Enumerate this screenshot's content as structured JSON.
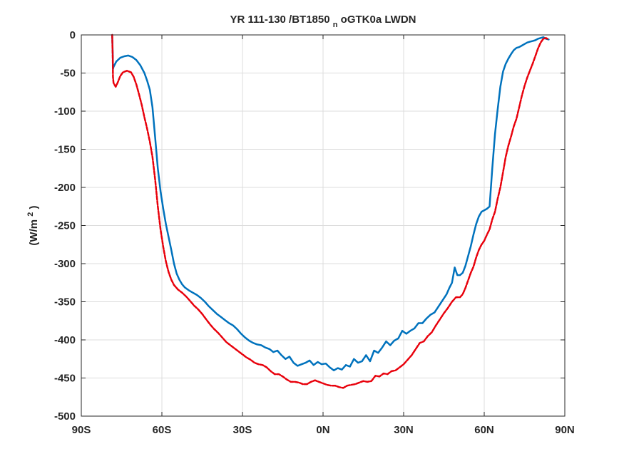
{
  "chart_data": {
    "type": "line",
    "title": {
      "main": "YR 111-130 /BT1850",
      "subscript": "n",
      "tail": "oGTK0a LWDN"
    },
    "xlabel": "",
    "ylabel": {
      "prefix": "(W/m",
      "superscript": "2",
      "suffix": ")"
    },
    "xlim": [
      -90,
      90
    ],
    "ylim": [
      -500,
      0
    ],
    "grid": true,
    "x_ticks": [
      {
        "value": -90,
        "label": "90S"
      },
      {
        "value": -60,
        "label": "60S"
      },
      {
        "value": -30,
        "label": "30S"
      },
      {
        "value": 0,
        "label": "0N"
      },
      {
        "value": 30,
        "label": "30N"
      },
      {
        "value": 60,
        "label": "60N"
      },
      {
        "value": 90,
        "label": "90N"
      }
    ],
    "y_ticks": [
      {
        "value": 0,
        "label": "0"
      },
      {
        "value": -50,
        "label": "-50"
      },
      {
        "value": -100,
        "label": "-100"
      },
      {
        "value": -150,
        "label": "-150"
      },
      {
        "value": -200,
        "label": "-200"
      },
      {
        "value": -250,
        "label": "-250"
      },
      {
        "value": -300,
        "label": "-300"
      },
      {
        "value": -350,
        "label": "-350"
      },
      {
        "value": -400,
        "label": "-400"
      },
      {
        "value": -450,
        "label": "-450"
      },
      {
        "value": -500,
        "label": "-500"
      }
    ],
    "series": [
      {
        "color": "#0072BD",
        "style": "solid",
        "points": [
          [
            -78.5,
            0
          ],
          [
            -78.3,
            -25
          ],
          [
            -78.2,
            -45
          ],
          [
            -78.0,
            -42
          ],
          [
            -77.0,
            -35
          ],
          [
            -75.5,
            -30
          ],
          [
            -74,
            -28
          ],
          [
            -72.5,
            -27
          ],
          [
            -71,
            -29
          ],
          [
            -69.5,
            -33
          ],
          [
            -68,
            -40
          ],
          [
            -66.5,
            -50
          ],
          [
            -65.5,
            -60
          ],
          [
            -64.5,
            -72
          ],
          [
            -63.5,
            -95
          ],
          [
            -62.5,
            -135
          ],
          [
            -61.5,
            -175
          ],
          [
            -60.5,
            -205
          ],
          [
            -59.5,
            -228
          ],
          [
            -58.5,
            -248
          ],
          [
            -57.5,
            -265
          ],
          [
            -56.5,
            -282
          ],
          [
            -55.5,
            -300
          ],
          [
            -54.5,
            -313
          ],
          [
            -53.5,
            -321
          ],
          [
            -52.5,
            -327
          ],
          [
            -51.5,
            -331
          ],
          [
            -50,
            -335
          ],
          [
            -48.5,
            -338
          ],
          [
            -47,
            -341
          ],
          [
            -45.5,
            -345
          ],
          [
            -44,
            -350
          ],
          [
            -42.5,
            -356
          ],
          [
            -41,
            -361
          ],
          [
            -39.5,
            -366
          ],
          [
            -38,
            -370
          ],
          [
            -36.5,
            -374
          ],
          [
            -35,
            -378
          ],
          [
            -33.5,
            -381
          ],
          [
            -32,
            -386
          ],
          [
            -30.5,
            -392
          ],
          [
            -29,
            -397
          ],
          [
            -27.5,
            -401
          ],
          [
            -26,
            -404
          ],
          [
            -24.5,
            -406
          ],
          [
            -23,
            -407
          ],
          [
            -21.5,
            -410
          ],
          [
            -20,
            -412
          ],
          [
            -18.5,
            -416
          ],
          [
            -17,
            -414
          ],
          [
            -15.5,
            -420
          ],
          [
            -14,
            -425
          ],
          [
            -12.5,
            -422
          ],
          [
            -11,
            -430
          ],
          [
            -9.5,
            -434
          ],
          [
            -8,
            -432
          ],
          [
            -6.5,
            -430
          ],
          [
            -5,
            -427
          ],
          [
            -3.5,
            -433
          ],
          [
            -2,
            -429
          ],
          [
            -0.5,
            -432
          ],
          [
            1,
            -431
          ],
          [
            2.5,
            -436
          ],
          [
            4,
            -440
          ],
          [
            5.5,
            -437
          ],
          [
            7,
            -439
          ],
          [
            8.5,
            -433
          ],
          [
            10,
            -435
          ],
          [
            11.5,
            -425
          ],
          [
            13,
            -430
          ],
          [
            14.5,
            -428
          ],
          [
            16,
            -420
          ],
          [
            17.5,
            -428
          ],
          [
            19,
            -414
          ],
          [
            20.5,
            -417
          ],
          [
            22,
            -410
          ],
          [
            23.5,
            -402
          ],
          [
            25,
            -407
          ],
          [
            26.5,
            -401
          ],
          [
            28,
            -398
          ],
          [
            29.5,
            -388
          ],
          [
            31,
            -392
          ],
          [
            32.5,
            -388
          ],
          [
            34,
            -385
          ],
          [
            35.5,
            -378
          ],
          [
            37,
            -378
          ],
          [
            38.5,
            -372
          ],
          [
            40,
            -367
          ],
          [
            41.5,
            -364
          ],
          [
            43,
            -356
          ],
          [
            44.5,
            -348
          ],
          [
            46,
            -340
          ],
          [
            47,
            -332
          ],
          [
            48,
            -325
          ],
          [
            49,
            -305
          ],
          [
            50,
            -315
          ],
          [
            51,
            -315
          ],
          [
            52,
            -312
          ],
          [
            53,
            -303
          ],
          [
            54,
            -290
          ],
          [
            55,
            -277
          ],
          [
            56,
            -262
          ],
          [
            57,
            -248
          ],
          [
            58,
            -238
          ],
          [
            59,
            -232
          ],
          [
            60,
            -230
          ],
          [
            61,
            -228
          ],
          [
            62,
            -225
          ],
          [
            63,
            -175
          ],
          [
            64,
            -130
          ],
          [
            65,
            -98
          ],
          [
            66,
            -68
          ],
          [
            67,
            -48
          ],
          [
            68,
            -38
          ],
          [
            69,
            -31
          ],
          [
            70,
            -25
          ],
          [
            71,
            -20
          ],
          [
            72,
            -17
          ],
          [
            73,
            -16
          ],
          [
            74,
            -14
          ],
          [
            75,
            -12
          ],
          [
            76,
            -10
          ],
          [
            77,
            -9
          ],
          [
            78,
            -8
          ],
          [
            79,
            -7
          ],
          [
            80,
            -5
          ],
          [
            81,
            -4
          ],
          [
            82,
            -3
          ],
          [
            83,
            -5
          ],
          [
            84,
            -6
          ]
        ]
      },
      {
        "color": "#E8000B",
        "style": "dashed",
        "points": [
          [
            -78.5,
            0
          ],
          [
            -78.3,
            -30
          ],
          [
            -78.2,
            -55
          ],
          [
            -78.0,
            -63
          ],
          [
            -77.2,
            -68
          ],
          [
            -76.5,
            -63
          ],
          [
            -75.5,
            -54
          ],
          [
            -74.5,
            -49
          ],
          [
            -73,
            -47
          ],
          [
            -71.5,
            -49
          ],
          [
            -70.5,
            -55
          ],
          [
            -69.5,
            -65
          ],
          [
            -68.5,
            -78
          ],
          [
            -67.5,
            -92
          ],
          [
            -66.5,
            -108
          ],
          [
            -65.5,
            -123
          ],
          [
            -64.5,
            -140
          ],
          [
            -63.5,
            -160
          ],
          [
            -62.5,
            -190
          ],
          [
            -61.5,
            -225
          ],
          [
            -60.5,
            -255
          ],
          [
            -59.5,
            -278
          ],
          [
            -58.5,
            -297
          ],
          [
            -57.5,
            -311
          ],
          [
            -56.5,
            -321
          ],
          [
            -55.5,
            -328
          ],
          [
            -54,
            -334
          ],
          [
            -52.5,
            -338
          ],
          [
            -51,
            -343
          ],
          [
            -49.5,
            -349
          ],
          [
            -48,
            -355
          ],
          [
            -46.5,
            -360
          ],
          [
            -45,
            -366
          ],
          [
            -43.5,
            -373
          ],
          [
            -42,
            -380
          ],
          [
            -40.5,
            -386
          ],
          [
            -39,
            -391
          ],
          [
            -37.5,
            -397
          ],
          [
            -36,
            -403
          ],
          [
            -34.5,
            -407
          ],
          [
            -33,
            -411
          ],
          [
            -31.5,
            -415
          ],
          [
            -30,
            -419
          ],
          [
            -28.5,
            -423
          ],
          [
            -27,
            -426
          ],
          [
            -25.5,
            -430
          ],
          [
            -24,
            -432
          ],
          [
            -22.5,
            -433
          ],
          [
            -21,
            -436
          ],
          [
            -19.5,
            -441
          ],
          [
            -18,
            -445
          ],
          [
            -16.5,
            -445
          ],
          [
            -15,
            -448
          ],
          [
            -13.5,
            -452
          ],
          [
            -12,
            -455
          ],
          [
            -10.5,
            -455
          ],
          [
            -9,
            -456
          ],
          [
            -7.5,
            -458
          ],
          [
            -6,
            -458
          ],
          [
            -4.5,
            -455
          ],
          [
            -3,
            -453
          ],
          [
            -1.5,
            -455
          ],
          [
            0,
            -457
          ],
          [
            1.5,
            -459
          ],
          [
            3,
            -460
          ],
          [
            4.5,
            -460
          ],
          [
            6,
            -462
          ],
          [
            7.5,
            -463
          ],
          [
            9,
            -460
          ],
          [
            10.5,
            -459
          ],
          [
            12,
            -458
          ],
          [
            13.5,
            -456
          ],
          [
            15,
            -454
          ],
          [
            16.5,
            -455
          ],
          [
            18,
            -454
          ],
          [
            19.5,
            -447
          ],
          [
            21,
            -448
          ],
          [
            22.5,
            -444
          ],
          [
            24,
            -445
          ],
          [
            25.5,
            -441
          ],
          [
            27,
            -440
          ],
          [
            28.5,
            -436
          ],
          [
            30,
            -432
          ],
          [
            31.5,
            -426
          ],
          [
            33,
            -420
          ],
          [
            34.5,
            -412
          ],
          [
            36,
            -404
          ],
          [
            37.5,
            -402
          ],
          [
            39,
            -395
          ],
          [
            40.5,
            -390
          ],
          [
            42,
            -381
          ],
          [
            43.5,
            -373
          ],
          [
            45,
            -365
          ],
          [
            46.5,
            -358
          ],
          [
            48,
            -350
          ],
          [
            49.5,
            -344
          ],
          [
            51,
            -344
          ],
          [
            52,
            -340
          ],
          [
            53,
            -332
          ],
          [
            54,
            -322
          ],
          [
            55,
            -312
          ],
          [
            56,
            -304
          ],
          [
            57,
            -292
          ],
          [
            58,
            -282
          ],
          [
            59,
            -275
          ],
          [
            60,
            -270
          ],
          [
            61,
            -262
          ],
          [
            62,
            -255
          ],
          [
            63,
            -242
          ],
          [
            64,
            -232
          ],
          [
            65,
            -215
          ],
          [
            66,
            -200
          ],
          [
            67,
            -180
          ],
          [
            68,
            -160
          ],
          [
            69,
            -145
          ],
          [
            70,
            -133
          ],
          [
            71,
            -120
          ],
          [
            72,
            -110
          ],
          [
            73,
            -95
          ],
          [
            74,
            -80
          ],
          [
            75,
            -67
          ],
          [
            76,
            -56
          ],
          [
            77,
            -47
          ],
          [
            78,
            -38
          ],
          [
            79,
            -28
          ],
          [
            80,
            -18
          ],
          [
            81,
            -10
          ],
          [
            82,
            -5
          ],
          [
            83,
            -4
          ],
          [
            84,
            -6
          ]
        ]
      }
    ]
  }
}
